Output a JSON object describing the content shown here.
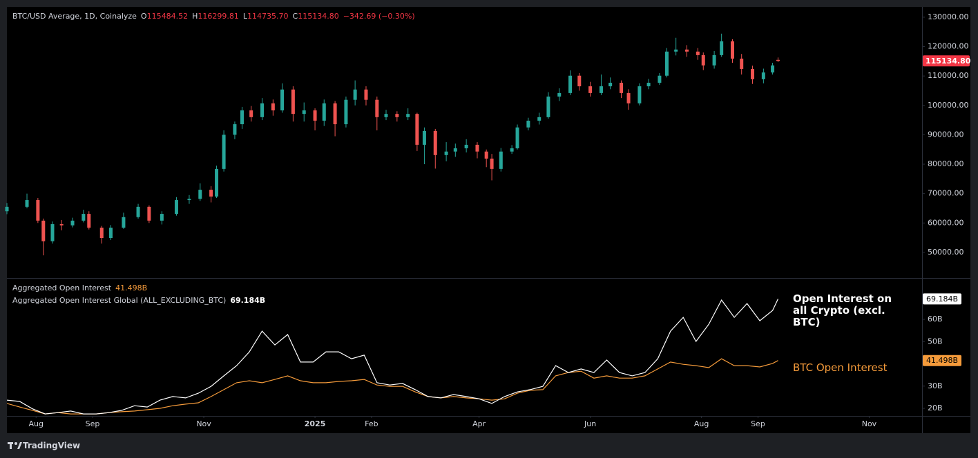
{
  "chart_data": [
    {
      "type": "candlestick",
      "header": {
        "title": "BTC/USD Average, 1D, Coinalyze",
        "ohlc": [
          {
            "key": "O",
            "value": "115484.52"
          },
          {
            "key": "H",
            "value": "116299.81"
          },
          {
            "key": "L",
            "value": "114735.70"
          },
          {
            "key": "C",
            "value": "115134.80"
          }
        ],
        "change": "−342.69 (−0.30%)"
      },
      "x": [
        0,
        11,
        17,
        20,
        25,
        30,
        36,
        42,
        45,
        52,
        57,
        64,
        72,
        78,
        85,
        93,
        100,
        106,
        112,
        115,
        119,
        125,
        129,
        134,
        140,
        146,
        151,
        157,
        163,
        169,
        174,
        180,
        186,
        191,
        197,
        203,
        208,
        214,
        220,
        225,
        229,
        235,
        241,
        246,
        252,
        258,
        263,
        266,
        271,
        277,
        280,
        286,
        292,
        297,
        303,
        309,
        314,
        320,
        326,
        331,
        337,
        341,
        347,
        352,
        358,
        362,
        367,
        373,
        379,
        382,
        388,
        392,
        398,
        403,
        409,
        415,
        420,
        423
      ],
      "open": [
        64000,
        65500,
        67800,
        60800,
        53800,
        59600,
        59200,
        60800,
        63100,
        58400,
        54900,
        58400,
        62000,
        65500,
        60800,
        63100,
        67800,
        68200,
        71300,
        69000,
        78400,
        90000,
        93600,
        98300,
        96000,
        100700,
        98300,
        105400,
        97100,
        98300,
        94800,
        100700,
        93600,
        101900,
        105400,
        101900,
        96000,
        97100,
        96000,
        97100,
        86600,
        91300,
        83100,
        84300,
        85400,
        86600,
        84300,
        81900,
        78400,
        84300,
        85400,
        92500,
        94800,
        96000,
        103000,
        104200,
        110100,
        106500,
        104200,
        106500,
        107700,
        104200,
        100700,
        106500,
        107700,
        110100,
        118300,
        119000,
        118300,
        117100,
        113600,
        117100,
        121800,
        115900,
        112400,
        108900,
        111200,
        115484.52
      ],
      "high": [
        66800,
        70000,
        68500,
        61500,
        60500,
        61000,
        61800,
        64500,
        64000,
        59000,
        59300,
        63500,
        66500,
        66000,
        64000,
        68800,
        69500,
        73500,
        72500,
        79500,
        91500,
        94500,
        99500,
        99800,
        102500,
        102000,
        107500,
        106500,
        101000,
        99000,
        102000,
        101500,
        103000,
        108500,
        106500,
        103000,
        98500,
        98000,
        99000,
        97500,
        92500,
        92000,
        87500,
        87000,
        88500,
        87500,
        85000,
        83500,
        85500,
        86500,
        93500,
        95800,
        97500,
        104500,
        105800,
        111900,
        111000,
        108000,
        110500,
        109500,
        108500,
        105500,
        107500,
        109000,
        111000,
        119500,
        123000,
        120500,
        119500,
        118000,
        118500,
        124400,
        122500,
        117500,
        113500,
        112500,
        114500,
        116299.81
      ],
      "low": [
        63000,
        65000,
        60000,
        49000,
        53000,
        57500,
        58500,
        60200,
        57800,
        53000,
        54200,
        58000,
        61500,
        60000,
        59500,
        62500,
        66500,
        67500,
        67000,
        68500,
        77500,
        88500,
        92000,
        94500,
        95000,
        96500,
        97500,
        94500,
        94500,
        91500,
        93000,
        89500,
        92500,
        100000,
        100000,
        91500,
        95000,
        94500,
        95000,
        84500,
        80000,
        78500,
        81000,
        82500,
        84000,
        82000,
        79000,
        74500,
        77500,
        83500,
        85000,
        91500,
        93500,
        95500,
        101500,
        103500,
        105000,
        103000,
        103500,
        105500,
        102500,
        98500,
        100000,
        105500,
        107000,
        109500,
        117000,
        116500,
        115500,
        112000,
        112500,
        116500,
        114500,
        110500,
        107300,
        107500,
        110500,
        114735.7
      ],
      "close": [
        65500,
        67800,
        60800,
        53800,
        59600,
        59200,
        60800,
        63100,
        58400,
        54900,
        58400,
        62000,
        65500,
        60800,
        63100,
        67800,
        68200,
        71300,
        69000,
        78400,
        90000,
        93600,
        98300,
        96000,
        100700,
        98300,
        105400,
        97100,
        98300,
        94800,
        100700,
        93600,
        101900,
        105400,
        101900,
        96000,
        97100,
        96000,
        97100,
        86600,
        91300,
        83100,
        84300,
        85400,
        86600,
        84300,
        81900,
        78400,
        84300,
        85400,
        92500,
        94800,
        96000,
        103000,
        104200,
        110100,
        106500,
        104200,
        106500,
        107700,
        104200,
        100700,
        106500,
        107700,
        110100,
        118300,
        119000,
        118300,
        117100,
        113600,
        117100,
        121800,
        115900,
        112400,
        108900,
        111200,
        113600,
        115134.8
      ],
      "up_color": "#26a69a",
      "down_color": "#ef5350",
      "last_price_label": "115134.80",
      "xlim": [
        0,
        502
      ],
      "ylim": [
        41300,
        133500
      ],
      "yticks": [
        {
          "value": 50000,
          "label": "50000.00"
        },
        {
          "value": 60000,
          "label": "60000.00"
        },
        {
          "value": 70000,
          "label": "70000.00"
        },
        {
          "value": 80000,
          "label": "80000.00"
        },
        {
          "value": 90000,
          "label": "90000.00"
        },
        {
          "value": 100000,
          "label": "100000.00"
        },
        {
          "value": 110000,
          "label": "110000.00"
        },
        {
          "value": 120000,
          "label": "120000.00"
        },
        {
          "value": 130000,
          "label": "130000.00"
        }
      ]
    },
    {
      "type": "line",
      "x": [
        0,
        7,
        14,
        21,
        28,
        35,
        42,
        49,
        56,
        63,
        70,
        77,
        84,
        91,
        98,
        105,
        112,
        119,
        126,
        133,
        140,
        147,
        154,
        161,
        168,
        175,
        182,
        189,
        196,
        203,
        210,
        217,
        224,
        231,
        238,
        245,
        252,
        259,
        266,
        273,
        280,
        287,
        294,
        301,
        308,
        315,
        322,
        329,
        336,
        343,
        350,
        357,
        364,
        371,
        378,
        385,
        392,
        399,
        406,
        413,
        420,
        423
      ],
      "series": [
        {
          "name": "Aggregated Open Interest",
          "color": "#f59b3b",
          "last_value_label": "41.498B",
          "values": [
            22.2,
            20.6,
            19.1,
            17.5,
            18.1,
            17.5,
            17.5,
            17.5,
            18.1,
            18.5,
            18.8,
            19.4,
            20.0,
            21.2,
            21.9,
            22.5,
            25.3,
            28.4,
            31.5,
            32.4,
            31.5,
            33.0,
            34.6,
            32.4,
            31.5,
            31.5,
            32.1,
            32.4,
            33.0,
            30.5,
            29.9,
            29.9,
            27.4,
            25.3,
            24.7,
            25.3,
            24.7,
            24.3,
            23.7,
            24.3,
            26.8,
            28.1,
            28.4,
            34.6,
            36.1,
            36.7,
            33.6,
            34.6,
            33.6,
            33.6,
            34.6,
            37.7,
            40.8,
            39.8,
            39.2,
            38.3,
            42.3,
            39.2,
            39.2,
            38.6,
            40.2,
            41.498
          ]
        },
        {
          "name": "Aggregated Open Interest Global (ALL_EXCLUDING_BTC)",
          "color": "#ffffff",
          "last_value_label": "69.184B",
          "values": [
            23.7,
            23.1,
            19.8,
            17.5,
            18.1,
            18.8,
            17.5,
            17.5,
            18.1,
            19.1,
            21.2,
            20.6,
            23.7,
            25.3,
            24.7,
            26.8,
            29.9,
            34.6,
            39.2,
            45.4,
            54.7,
            48.5,
            53.2,
            40.8,
            40.8,
            45.4,
            45.4,
            42.3,
            43.9,
            31.5,
            30.5,
            31.2,
            28.4,
            25.3,
            24.7,
            26.2,
            25.3,
            24.3,
            22.2,
            25.3,
            27.4,
            28.4,
            29.9,
            39.2,
            36.1,
            37.7,
            36.1,
            41.7,
            36.1,
            34.6,
            36.1,
            42.3,
            54.7,
            60.9,
            50.1,
            57.8,
            68.7,
            60.9,
            67.1,
            59.4,
            64.0,
            69.184
          ]
        }
      ],
      "annotations": [
        {
          "text": "Open Interest on all Crypto (excl. BTC)",
          "color": "#ffffff"
        },
        {
          "text": "BTC Open Interest",
          "color": "#f59b3b"
        }
      ],
      "xlim": [
        0,
        502
      ],
      "xticks": [
        {
          "value": 16,
          "label": "Aug"
        },
        {
          "value": 47,
          "label": "Sep"
        },
        {
          "value": 108,
          "label": "Nov"
        },
        {
          "value": 169,
          "label": "2025"
        },
        {
          "value": 200,
          "label": "Feb"
        },
        {
          "value": 259,
          "label": "Apr"
        },
        {
          "value": 320,
          "label": "Jun"
        },
        {
          "value": 381,
          "label": "Aug"
        },
        {
          "value": 412,
          "label": "Sep"
        },
        {
          "value": 473,
          "label": "Nov"
        }
      ],
      "ylim": [
        16.6,
        78.3
      ],
      "yticks": [
        {
          "value": 20,
          "label": "20B"
        },
        {
          "value": 30,
          "label": "30B"
        },
        {
          "value": 50,
          "label": "50B"
        },
        {
          "value": 60,
          "label": "60B"
        }
      ]
    }
  ],
  "footer": {
    "brand": "TradingView"
  }
}
